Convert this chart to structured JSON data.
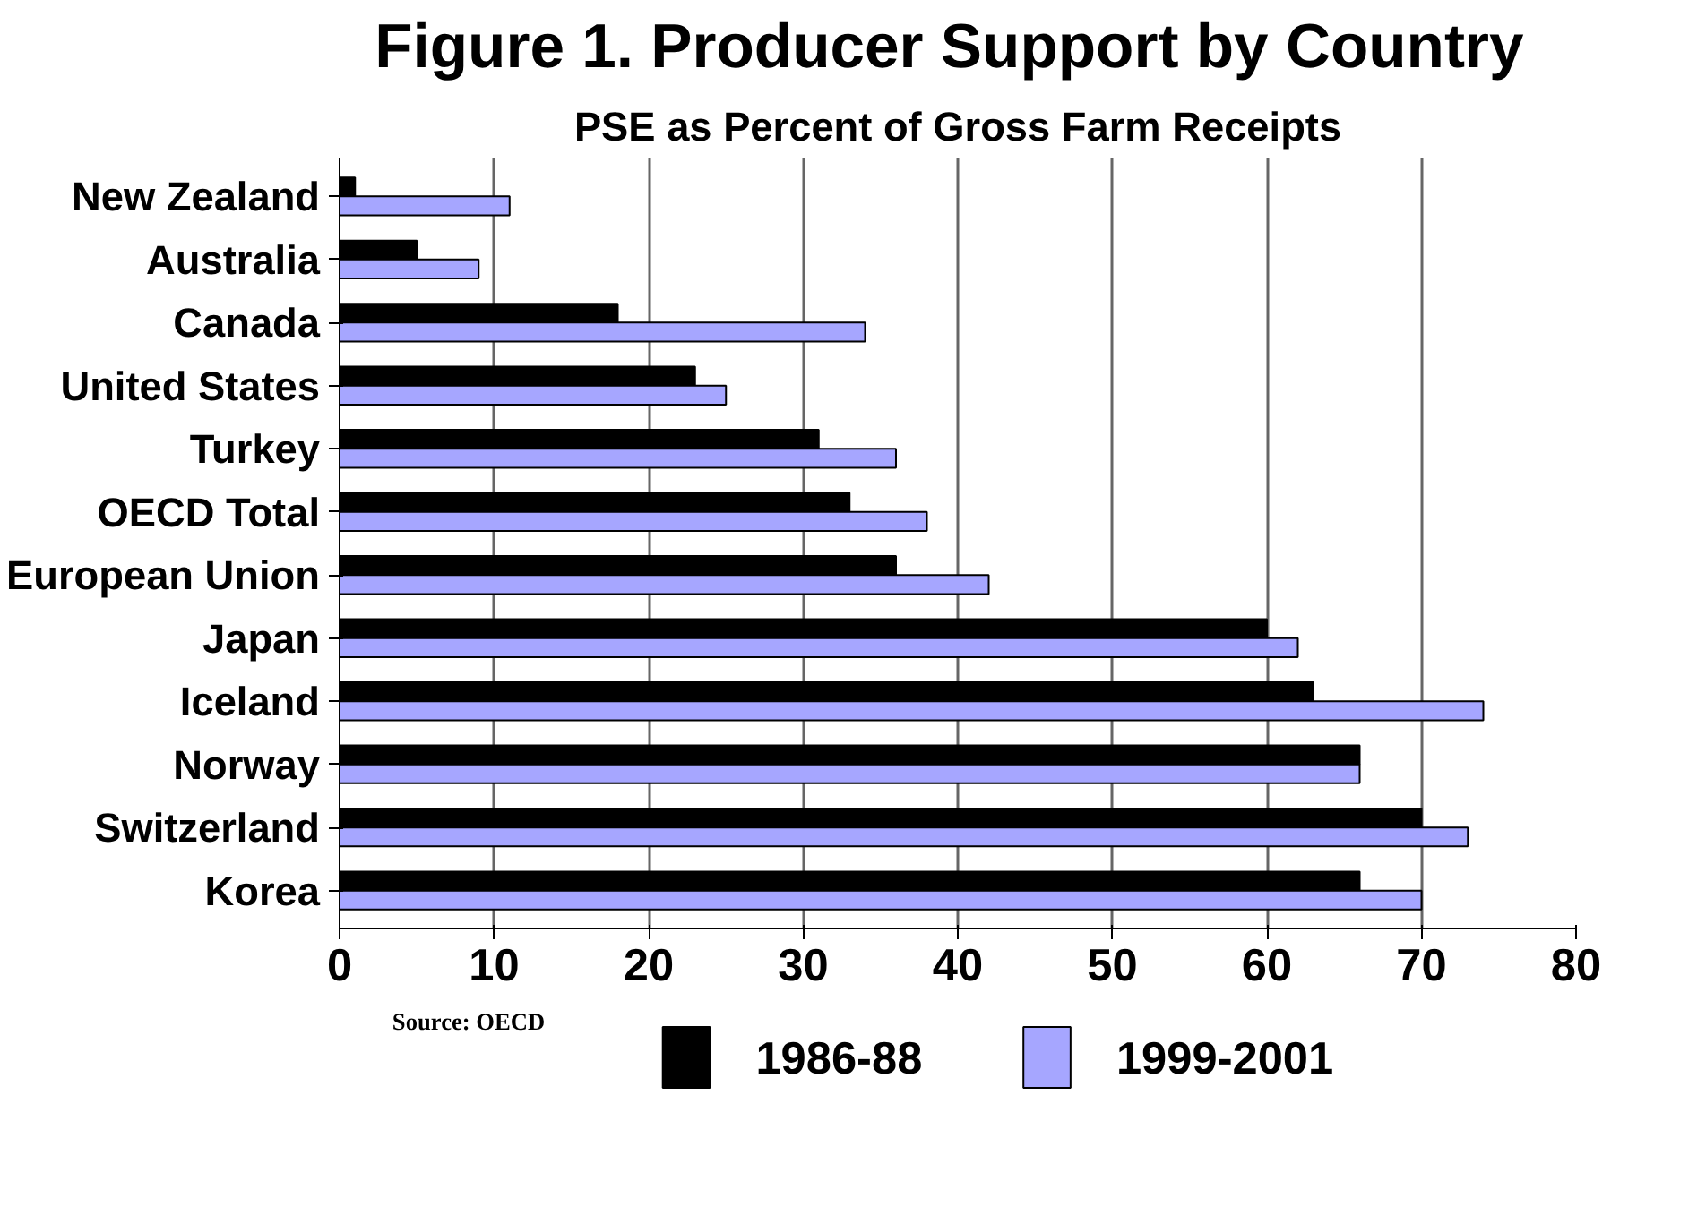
{
  "chart_data": {
    "type": "bar",
    "orientation": "horizontal",
    "title": "Figure 1.  Producer Support by Country",
    "subtitle": "PSE as Percent of Gross Farm Receipts",
    "categories": [
      "New Zealand",
      "Australia",
      "Canada",
      "United States",
      "Turkey",
      "OECD Total",
      "European Union",
      "Japan",
      "Iceland",
      "Norway",
      "Switzerland",
      "Korea"
    ],
    "series": [
      {
        "name": "1986-88",
        "color": "#000000",
        "values": [
          1,
          5,
          18,
          23,
          31,
          33,
          36,
          60,
          63,
          66,
          70,
          66
        ]
      },
      {
        "name": "1999-2001",
        "color": "#a6a6ff",
        "values": [
          11,
          9,
          34,
          25,
          36,
          38,
          42,
          62,
          74,
          66,
          73,
          70
        ]
      }
    ],
    "xlim": [
      0,
      80
    ],
    "xticks": [
      0,
      10,
      20,
      30,
      40,
      50,
      60,
      70,
      80
    ],
    "grid": "x",
    "legend": "bottom",
    "annotations": [
      "Source: OECD"
    ]
  }
}
